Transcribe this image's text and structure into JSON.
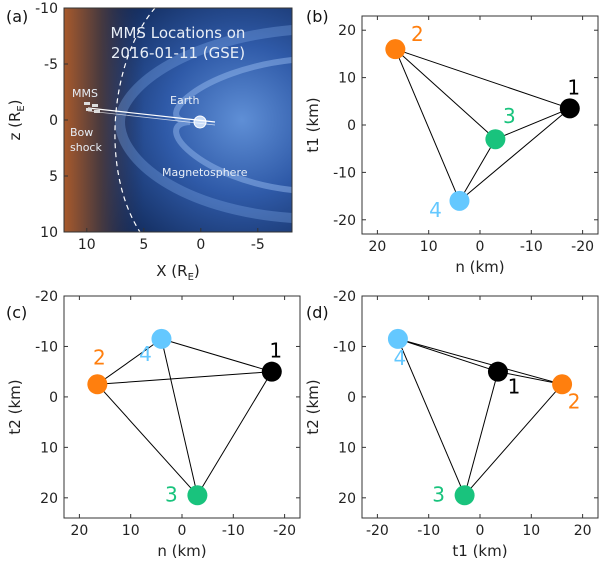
{
  "figure": {
    "panels": [
      {
        "label": "(a)",
        "type": "image",
        "image_title": [
          "MMS Locations on",
          "2016-01-11 (GSE)"
        ],
        "annotations": {
          "mms": "MMS",
          "earth": "Earth",
          "bow_shock": [
            "Bow",
            "shock"
          ],
          "magnetosphere": "Magnetosphere"
        },
        "xlabel": {
          "main": "X (R",
          "sub": "E",
          "close": ")"
        },
        "ylabel": {
          "main": "z (R",
          "sub": "E",
          "close": ")"
        },
        "xticks": [
          "10",
          "5",
          "0",
          "-5"
        ],
        "yticks": [
          "-10",
          "-5",
          "0",
          "5",
          "10"
        ],
        "xrange": [
          12,
          -8
        ],
        "yrange": [
          -10,
          10
        ]
      }
    ]
  },
  "chart_data": [
    {
      "panel": "(b)",
      "type": "scatter",
      "xlabel": "n (km)",
      "ylabel": "t1 (km)",
      "xlim": [
        23,
        -23
      ],
      "ylim": [
        23,
        -23
      ],
      "xticks": [
        20,
        10,
        0,
        -10,
        -20
      ],
      "yticks": [
        20,
        10,
        0,
        -10,
        -20
      ],
      "points": [
        {
          "label": "1",
          "x": -17.5,
          "y": 3.5,
          "color": "#000000"
        },
        {
          "label": "2",
          "x": 16.5,
          "y": 16.0,
          "color": "#ff7f0e"
        },
        {
          "label": "3",
          "x": -3.0,
          "y": -3.0,
          "color": "#19c37d"
        },
        {
          "label": "4",
          "x": 4.0,
          "y": -16.0,
          "color": "#64c8ff"
        }
      ]
    },
    {
      "panel": "(c)",
      "type": "scatter",
      "xlabel": "n (km)",
      "ylabel": "t2 (km)",
      "xlim": [
        23,
        -23
      ],
      "ylim": [
        -20,
        24
      ],
      "xticks": [
        20,
        10,
        0,
        -10,
        -20
      ],
      "yticks": [
        20,
        10,
        0,
        -10,
        -20
      ],
      "points": [
        {
          "label": "1",
          "x": -17.5,
          "y": -5.0,
          "color": "#000000"
        },
        {
          "label": "2",
          "x": 16.5,
          "y": -2.5,
          "color": "#ff7f0e"
        },
        {
          "label": "3",
          "x": -3.0,
          "y": 19.5,
          "color": "#19c37d"
        },
        {
          "label": "4",
          "x": 4.0,
          "y": -11.5,
          "color": "#64c8ff"
        }
      ]
    },
    {
      "panel": "(d)",
      "type": "scatter",
      "xlabel": "t1 (km)",
      "ylabel": "t2 (km)",
      "xlim": [
        -23,
        23
      ],
      "ylim": [
        -20,
        24
      ],
      "xticks": [
        -20,
        -10,
        0,
        10,
        20
      ],
      "yticks": [
        20,
        10,
        0,
        -10,
        -20
      ],
      "points": [
        {
          "label": "1",
          "x": 3.5,
          "y": -5.0,
          "color": "#000000"
        },
        {
          "label": "2",
          "x": 16.0,
          "y": -2.5,
          "color": "#ff7f0e"
        },
        {
          "label": "3",
          "x": -3.0,
          "y": 19.5,
          "color": "#19c37d"
        },
        {
          "label": "4",
          "x": -16.0,
          "y": -11.5,
          "color": "#64c8ff"
        }
      ]
    }
  ]
}
